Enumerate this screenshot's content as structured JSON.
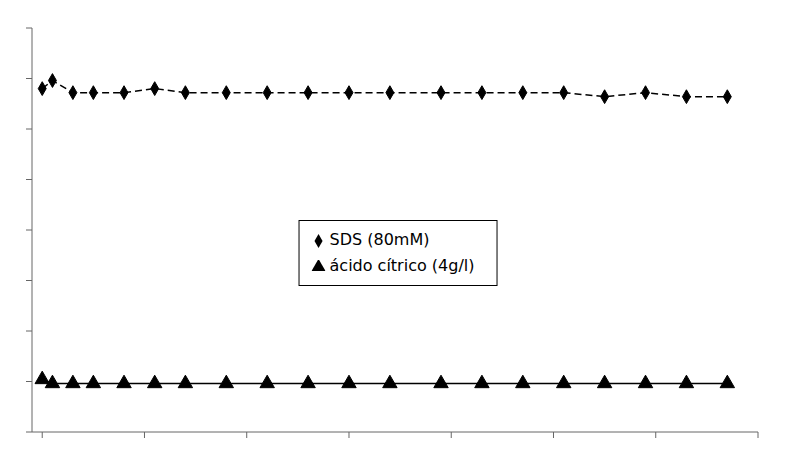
{
  "chart_data": {
    "type": "line",
    "x": [
      0,
      5,
      15,
      25,
      40,
      55,
      70,
      90,
      110,
      130,
      150,
      170,
      195,
      215,
      235,
      255,
      275,
      295,
      315,
      335
    ],
    "series": [
      {
        "name": "SDS (80mM)",
        "color": "#000000",
        "marker": "diamond",
        "line_style": "dashed",
        "values": [
          85,
          87,
          84,
          84,
          84,
          85,
          84,
          84,
          84,
          84,
          84,
          84,
          84,
          84,
          84,
          84,
          83,
          84,
          83,
          83
        ]
      },
      {
        "name": "ácido cítrico (4g/l)",
        "color": "#000000",
        "marker": "triangle",
        "line_style": "solid",
        "values": [
          13,
          12,
          12,
          12,
          12,
          12,
          12,
          12,
          12,
          12,
          12,
          12,
          12,
          12,
          12,
          12,
          12,
          12,
          12,
          12
        ]
      }
    ],
    "xlim": [
      -5,
      350
    ],
    "ylim": [
      0,
      100
    ],
    "xticks": [
      0,
      50,
      100,
      150,
      200,
      250,
      300,
      350
    ],
    "yticks": [
      0,
      12.5,
      25,
      37.5,
      50,
      62.5,
      75,
      87.5,
      100
    ],
    "grid": false,
    "legend": "center",
    "tick_labels": false
  }
}
